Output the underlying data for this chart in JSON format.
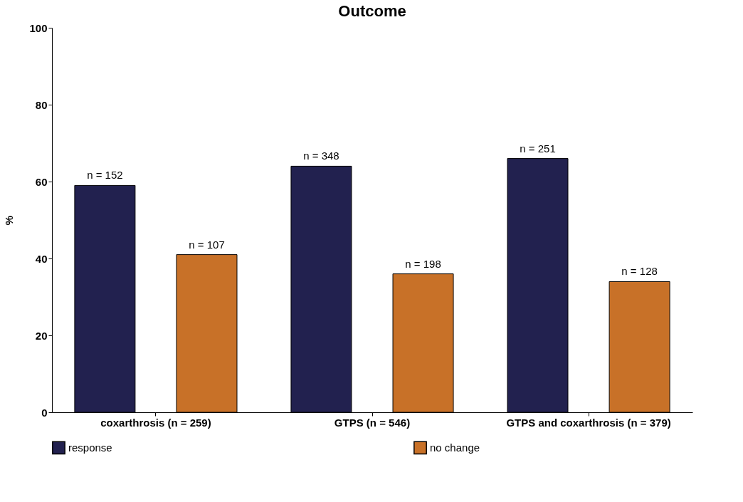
{
  "chart_data": {
    "type": "bar",
    "title": "Outcome",
    "ylabel": "%",
    "categories": [
      "coxarthrosis (n = 259)",
      "GTPS (n = 546)",
      "GTPS and coxarthrosis (n = 379)"
    ],
    "series": [
      {
        "name": "response",
        "color": "#22214f",
        "values": [
          59,
          64,
          66
        ]
      },
      {
        "name": "no change",
        "color": "#c87128",
        "values": [
          41,
          36,
          34
        ]
      }
    ],
    "annotations": [
      "n = 152",
      "n = 348",
      "n = 251",
      "n = 107",
      "n = 198",
      "n = 128"
    ],
    "ylim": [
      0,
      100
    ],
    "yticks": [
      0,
      20,
      40,
      60,
      80,
      100
    ],
    "grid": false,
    "legend": "bottom"
  }
}
